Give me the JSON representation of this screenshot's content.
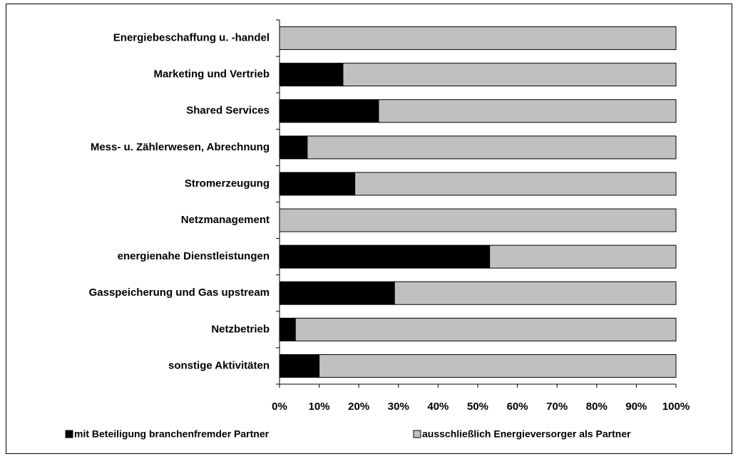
{
  "chart_data": {
    "type": "stacked-bar-horizontal",
    "categories": [
      "Energiebeschaffung u. -handel",
      "Marketing und Vertrieb",
      "Shared Services",
      "Mess- u. Zählerwesen, Abrechnung",
      "Stromerzeugung",
      "Netzmanagement",
      "energienahe Dienstleistungen",
      "Gasspeicherung und Gas upstream",
      "Netzbetrieb",
      "sonstige Aktivitäten"
    ],
    "series": [
      {
        "name": "mit Beteiligung branchenfremder Partner",
        "color": "#000000",
        "values": [
          0,
          16,
          25,
          7,
          19,
          0,
          53,
          29,
          4,
          10
        ]
      },
      {
        "name": "ausschließlich Energieversorger als Partner",
        "color": "#c0c0c0",
        "values": [
          100,
          84,
          75,
          93,
          81,
          100,
          47,
          71,
          96,
          90
        ]
      }
    ],
    "xlim": [
      0,
      100
    ],
    "xticks": [
      {
        "value": 0,
        "label": "0%"
      },
      {
        "value": 10,
        "label": "10%"
      },
      {
        "value": 20,
        "label": "20%"
      },
      {
        "value": 30,
        "label": "30%"
      },
      {
        "value": 40,
        "label": "40%"
      },
      {
        "value": 50,
        "label": "50%"
      },
      {
        "value": 60,
        "label": "60%"
      },
      {
        "value": 70,
        "label": "70%"
      },
      {
        "value": 80,
        "label": "80%"
      },
      {
        "value": 90,
        "label": "90%"
      },
      {
        "value": 100,
        "label": "100%"
      }
    ],
    "legend": "bottom"
  }
}
